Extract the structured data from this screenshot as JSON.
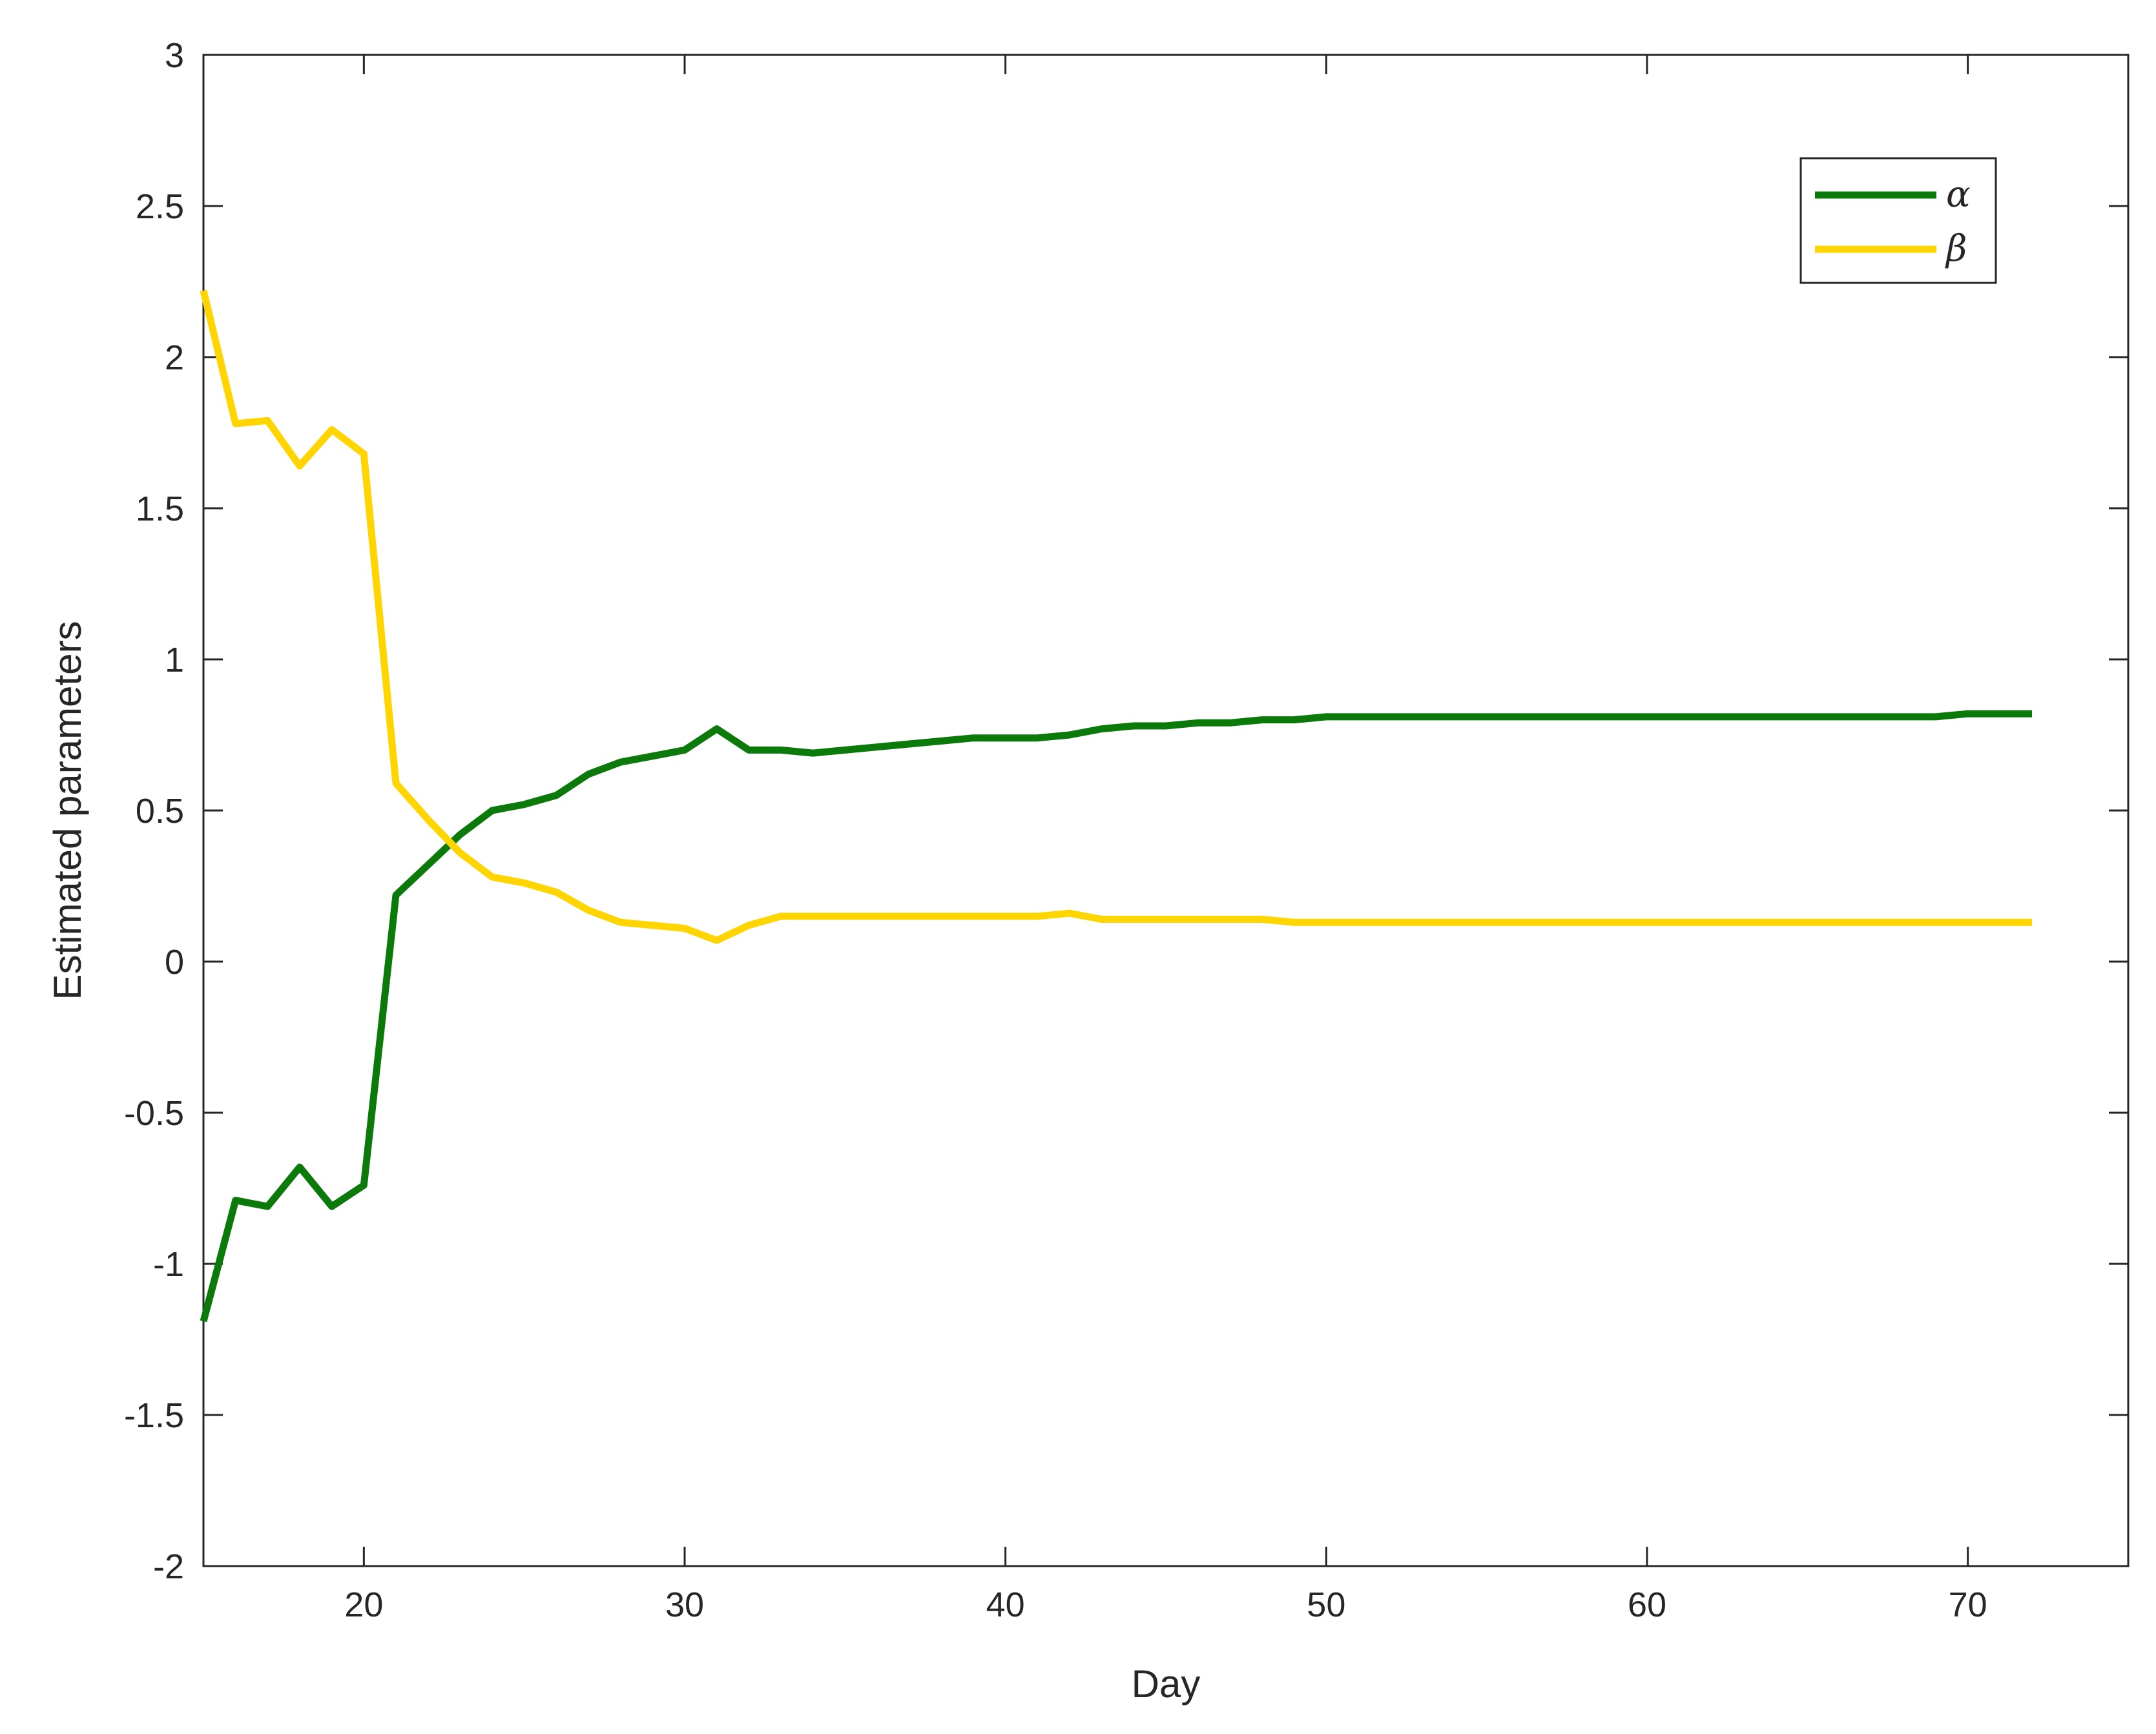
{
  "chart_data": {
    "type": "line",
    "xlabel": "Day",
    "ylabel": "Estimated parameters",
    "xlim": [
      15,
      75
    ],
    "ylim": [
      -2,
      3
    ],
    "x_ticks": [
      20,
      30,
      40,
      50,
      60,
      70
    ],
    "x_tick_labels": [
      "20",
      "30",
      "40",
      "50",
      "60",
      "70"
    ],
    "y_ticks": [
      -2,
      -1.5,
      -1,
      -0.5,
      0,
      0.5,
      1,
      1.5,
      2,
      2.5,
      3
    ],
    "y_tick_labels": [
      "-2",
      "-1.5",
      "-1",
      "-0.5",
      "0",
      "0.5",
      "1",
      "1.5",
      "2",
      "2.5",
      "3"
    ],
    "grid": false,
    "legend_position": "top-right",
    "x": [
      15,
      16,
      17,
      18,
      19,
      20,
      21,
      22,
      23,
      24,
      25,
      26,
      27,
      28,
      29,
      30,
      31,
      32,
      33,
      34,
      35,
      36,
      37,
      38,
      39,
      40,
      41,
      42,
      43,
      44,
      45,
      46,
      47,
      48,
      49,
      50,
      51,
      52,
      53,
      54,
      55,
      56,
      57,
      58,
      59,
      60,
      61,
      62,
      63,
      64,
      65,
      66,
      67,
      68,
      69,
      70,
      71,
      72
    ],
    "series": [
      {
        "name": "α",
        "color": "#0b7a0b",
        "values": [
          -1.19,
          -0.79,
          -0.81,
          -0.68,
          -0.81,
          -0.74,
          0.22,
          0.32,
          0.42,
          0.5,
          0.52,
          0.55,
          0.62,
          0.66,
          0.68,
          0.7,
          0.77,
          0.7,
          0.7,
          0.69,
          0.7,
          0.71,
          0.72,
          0.73,
          0.74,
          0.74,
          0.74,
          0.75,
          0.77,
          0.78,
          0.78,
          0.79,
          0.79,
          0.8,
          0.8,
          0.81,
          0.81,
          0.81,
          0.81,
          0.81,
          0.81,
          0.81,
          0.81,
          0.81,
          0.81,
          0.81,
          0.81,
          0.81,
          0.81,
          0.81,
          0.81,
          0.81,
          0.81,
          0.81,
          0.81,
          0.82,
          0.82,
          0.82
        ]
      },
      {
        "name": "β",
        "color": "#ffd500",
        "values": [
          2.22,
          1.78,
          1.79,
          1.64,
          1.76,
          1.68,
          0.59,
          0.47,
          0.36,
          0.28,
          0.26,
          0.23,
          0.17,
          0.13,
          0.12,
          0.11,
          0.07,
          0.12,
          0.15,
          0.15,
          0.15,
          0.15,
          0.15,
          0.15,
          0.15,
          0.15,
          0.15,
          0.16,
          0.14,
          0.14,
          0.14,
          0.14,
          0.14,
          0.14,
          0.13,
          0.13,
          0.13,
          0.13,
          0.13,
          0.13,
          0.13,
          0.13,
          0.13,
          0.13,
          0.13,
          0.13,
          0.13,
          0.13,
          0.13,
          0.13,
          0.13,
          0.13,
          0.13,
          0.13,
          0.13,
          0.13,
          0.13,
          0.13
        ]
      }
    ]
  }
}
